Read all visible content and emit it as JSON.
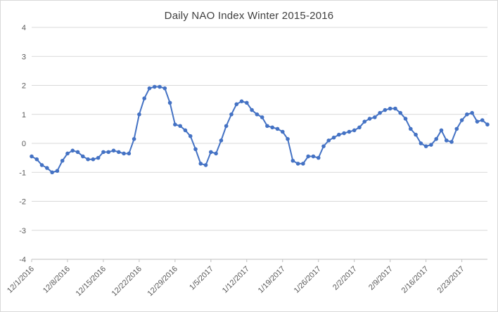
{
  "chart_data": {
    "type": "line",
    "title": "Daily NAO Index Winter 2015-2016",
    "xlabel": "",
    "ylabel": "",
    "ylim": [
      -4,
      4
    ],
    "ytick_step": 1,
    "y_tick_labels": [
      "4",
      "3",
      "2",
      "1",
      "0",
      "-1",
      "-2",
      "-3",
      "-4"
    ],
    "x_tick_labels": [
      "12/1/2016",
      "12/8/2016",
      "12/15/2016",
      "12/22/2016",
      "12/29/2016",
      "1/5/2017",
      "1/12/2017",
      "1/19/2017",
      "1/26/2017",
      "2/2/2017",
      "2/9/2017",
      "2/16/2017",
      "2/23/2017"
    ],
    "x_tick_interval": 7,
    "grid": "horizontal",
    "legend": "none",
    "line_color": "#4472C4",
    "gridline_color": "#d9d9d9",
    "axis_color": "#bfbfbf",
    "label_color": "#595959",
    "marker": "circle",
    "values": [
      -0.45,
      -0.55,
      -0.75,
      -0.85,
      -1.0,
      -0.95,
      -0.6,
      -0.35,
      -0.25,
      -0.3,
      -0.45,
      -0.55,
      -0.55,
      -0.5,
      -0.3,
      -0.3,
      -0.25,
      -0.3,
      -0.35,
      -0.35,
      0.15,
      1.0,
      1.55,
      1.9,
      1.95,
      1.95,
      1.9,
      1.4,
      0.65,
      0.6,
      0.45,
      0.25,
      -0.2,
      -0.7,
      -0.75,
      -0.3,
      -0.35,
      0.1,
      0.6,
      1.0,
      1.35,
      1.45,
      1.4,
      1.15,
      1.0,
      0.9,
      0.6,
      0.55,
      0.5,
      0.4,
      0.15,
      -0.6,
      -0.7,
      -0.7,
      -0.45,
      -0.45,
      -0.5,
      -0.1,
      0.1,
      0.2,
      0.3,
      0.35,
      0.4,
      0.45,
      0.55,
      0.75,
      0.85,
      0.9,
      1.05,
      1.15,
      1.2,
      1.2,
      1.05,
      0.85,
      0.5,
      0.3,
      0.0,
      -0.1,
      -0.05,
      0.15,
      0.45,
      0.1,
      0.05,
      0.5,
      0.8,
      1.0,
      1.05,
      0.75,
      0.8,
      0.65
    ]
  }
}
